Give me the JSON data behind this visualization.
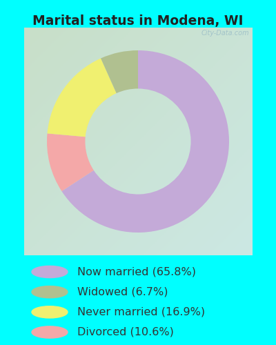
{
  "title": "Marital status in Modena, WI",
  "title_color": "#222222",
  "title_fontsize": 13.5,
  "bg_color": "#00FFFF",
  "chart_bg_colors": [
    "#c8dfc8",
    "#cce8e4"
  ],
  "slices": [
    {
      "label": "Now married (65.8%)",
      "value": 65.8,
      "color": "#c4aad8"
    },
    {
      "label": "Divorced (10.6%)",
      "value": 10.6,
      "color": "#f4a8a8"
    },
    {
      "label": "Never married (16.9%)",
      "value": 16.9,
      "color": "#f0f070"
    },
    {
      "label": "Widowed (6.7%)",
      "value": 6.7,
      "color": "#b0c090"
    }
  ],
  "startangle": 90,
  "donut_width": 0.42,
  "legend_labels": [
    "Now married (65.8%)",
    "Widowed (6.7%)",
    "Never married (16.9%)",
    "Divorced (10.6%)"
  ],
  "legend_colors": [
    "#c4aad8",
    "#b0c090",
    "#f0f070",
    "#f4a8a8"
  ],
  "legend_fontsize": 11.5,
  "watermark": "City-Data.com"
}
